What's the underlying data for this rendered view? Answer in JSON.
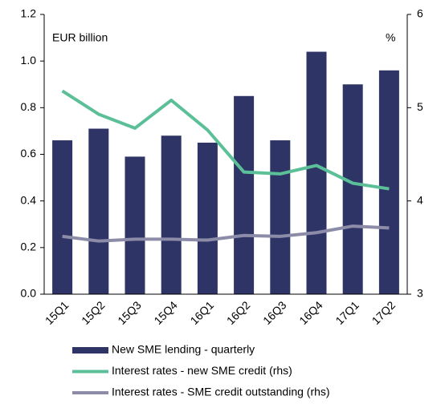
{
  "chart_data": {
    "type": "bar",
    "annotations": [
      "EUR billion",
      "%"
    ],
    "categories": [
      "15Q1",
      "15Q2",
      "15Q3",
      "15Q4",
      "16Q1",
      "16Q2",
      "16Q3",
      "16Q4",
      "17Q1",
      "17Q2"
    ],
    "series": [
      {
        "name": "New SME lending - quarterly",
        "type": "bar",
        "color": "#2e3566",
        "values": [
          0.66,
          0.71,
          0.59,
          0.68,
          0.65,
          0.85,
          0.66,
          1.04,
          0.9,
          0.96
        ]
      },
      {
        "name": "Interest rates - new SME credit (rhs)",
        "type": "line",
        "axis": "y2",
        "color": "#5bbf98",
        "values": [
          5.18,
          4.93,
          4.78,
          5.08,
          4.76,
          4.31,
          4.29,
          4.38,
          4.19,
          4.13
        ]
      },
      {
        "name": "Interest rates - SME credit outstanding (rhs)",
        "type": "line",
        "axis": "y2",
        "color": "#8c8ca8",
        "values": [
          3.62,
          3.57,
          3.59,
          3.59,
          3.58,
          3.63,
          3.62,
          3.66,
          3.73,
          3.71
        ]
      }
    ],
    "ylim": [
      0,
      1.2
    ],
    "yticks": [
      {
        "value": 0,
        "label": "0.0"
      },
      0.2,
      0.4,
      0.6,
      0.8,
      {
        "value": 1,
        "label": "1.0"
      },
      1.2
    ],
    "y2lim": [
      3,
      6
    ],
    "y2ticks": [
      3,
      4,
      5,
      6
    ],
    "grid": false,
    "legend": "bottom"
  }
}
